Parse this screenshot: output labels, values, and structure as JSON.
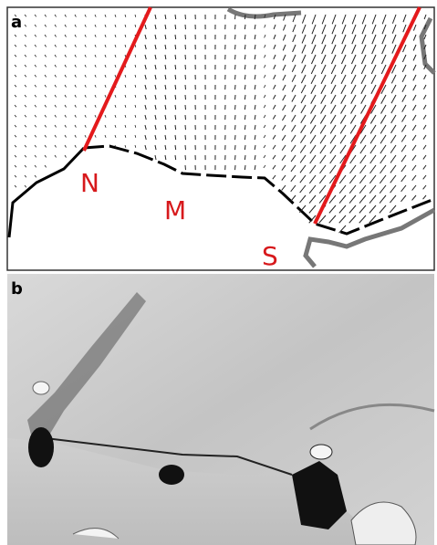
{
  "panels": [
    {
      "label": "a",
      "annotations": [
        "N",
        "M",
        "S"
      ]
    },
    {
      "label": "b"
    }
  ]
}
